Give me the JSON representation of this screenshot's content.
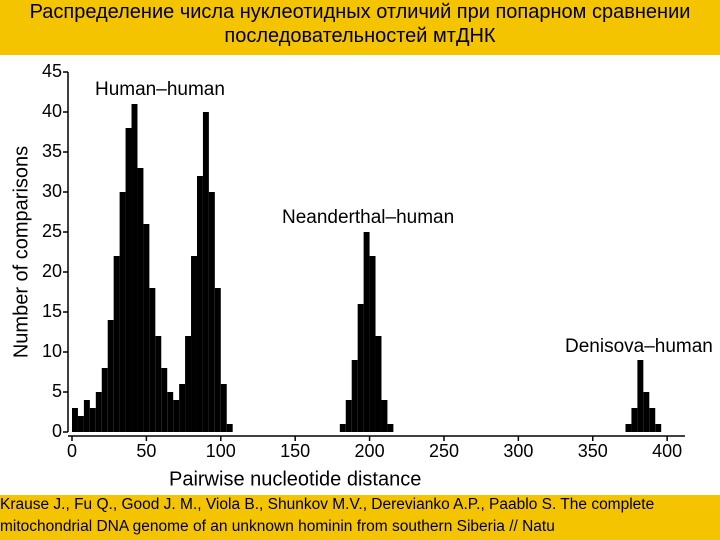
{
  "header": {
    "title": "Распределение числа нуклеотидных отличий при попарном сравнении последовательностей мтДНК"
  },
  "chart_data": {
    "type": "histogram",
    "xlabel": "Pairwise nucleotide distance",
    "ylabel": "Number of comparisons",
    "annotations": [
      "Human–human",
      "Neanderthal–human",
      "Denisova–human"
    ],
    "color": "#000000",
    "bins": [
      0,
      4,
      8,
      12,
      16,
      20,
      24,
      28,
      32,
      36,
      40,
      44,
      48,
      52,
      56,
      60,
      64,
      68,
      72,
      76,
      80,
      84,
      88,
      92,
      96,
      100,
      104,
      108,
      112,
      116,
      120,
      124,
      128,
      132,
      136,
      140,
      144,
      148,
      152,
      156,
      160,
      164,
      168,
      172,
      176,
      180,
      184,
      188,
      192,
      196,
      200,
      204,
      208,
      212,
      216,
      220,
      224,
      228,
      232,
      236,
      240,
      244,
      248,
      252,
      256,
      260,
      264,
      268,
      272,
      276,
      280,
      284,
      288,
      292,
      296,
      300,
      304,
      308,
      312,
      316,
      320,
      324,
      328,
      332,
      336,
      340,
      344,
      348,
      352,
      356,
      360,
      364,
      368,
      372,
      376,
      380,
      384,
      388,
      392,
      396,
      400,
      404,
      408
    ],
    "values": [
      3,
      2,
      4,
      3,
      5,
      8,
      14,
      22,
      30,
      38,
      41,
      33,
      26,
      18,
      12,
      8,
      5,
      4,
      6,
      12,
      22,
      32,
      40,
      30,
      18,
      6,
      1,
      0,
      0,
      0,
      0,
      0,
      0,
      0,
      0,
      0,
      0,
      0,
      0,
      0,
      0,
      0,
      0,
      0,
      0,
      1,
      4,
      9,
      16,
      25,
      22,
      12,
      4,
      1,
      0,
      0,
      0,
      0,
      0,
      0,
      0,
      0,
      0,
      0,
      0,
      0,
      0,
      0,
      0,
      0,
      0,
      0,
      0,
      0,
      0,
      0,
      0,
      0,
      0,
      0,
      0,
      0,
      0,
      0,
      0,
      0,
      0,
      0,
      0,
      0,
      0,
      0,
      0,
      1,
      3,
      9,
      5,
      3,
      1,
      0,
      0,
      0
    ],
    "xlim": [
      0,
      412
    ],
    "ylim": [
      0,
      45
    ],
    "xticks": [
      0,
      50,
      100,
      150,
      200,
      250,
      300,
      350,
      400
    ],
    "yticks": [
      0,
      5,
      10,
      15,
      20,
      25,
      30,
      35,
      40,
      45
    ]
  },
  "footer": {
    "citation": "Krause J., Fu Q., Good J. M., Viola B., Shunkov M.V., Derevianko A.P., Paablo S. The complete mitochondrial DNA genome of an unknown hominin from southern Siberia // Natu"
  }
}
